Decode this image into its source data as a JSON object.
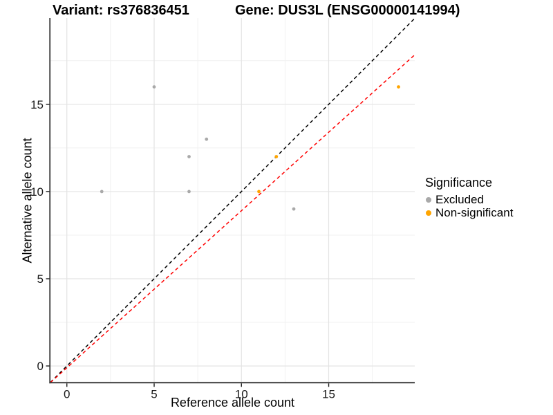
{
  "titles": {
    "variant": "Variant: rs376836451",
    "gene": "Gene: DUS3L (ENSG00000141994)"
  },
  "axes": {
    "x_label": "Reference allele count",
    "y_label": "Alternative allele count"
  },
  "legend": {
    "title": "Significance",
    "items": [
      {
        "label": "Excluded",
        "color": "#A9A9A9"
      },
      {
        "label": "Non-significant",
        "color": "#FFA500"
      }
    ]
  },
  "chart_data": {
    "type": "scatter",
    "title_left": "Variant: rs376836451",
    "title_right": "Gene: DUS3L (ENSG00000141994)",
    "xlabel": "Reference allele count",
    "ylabel": "Alternative allele count",
    "xlim": [
      -0.94,
      19.93
    ],
    "ylim": [
      -0.96,
      19.95
    ],
    "x_breaks": [
      0,
      5,
      10,
      15
    ],
    "y_breaks": [
      0,
      5,
      10,
      15
    ],
    "x_minor_breaks": [
      2.5,
      7.5,
      12.5,
      17.5
    ],
    "y_minor_breaks": [
      2.5,
      7.5,
      12.5,
      17.5
    ],
    "grid": true,
    "legend_position": "right",
    "series": [
      {
        "name": "Excluded",
        "color": "#A9A9A9",
        "points": [
          [
            2,
            10
          ],
          [
            5,
            16
          ],
          [
            7,
            10
          ],
          [
            7,
            12
          ],
          [
            8,
            13
          ],
          [
            13,
            9
          ]
        ]
      },
      {
        "name": "Non-significant",
        "color": "#FFA500",
        "points": [
          [
            11,
            10
          ],
          [
            12,
            12
          ],
          [
            19,
            16
          ]
        ]
      }
    ],
    "lines": [
      {
        "name": "identity",
        "slope": 1,
        "intercept": 0,
        "color": "#000000",
        "style": "dashed"
      },
      {
        "name": "fit",
        "slope": 0.9,
        "intercept": -0.1,
        "color": "#FF0000",
        "style": "dashed"
      }
    ],
    "colors": {
      "grid_major": "#E3E3E3",
      "grid_minor": "#F1F1F1",
      "axis_line": "#3A3A3A",
      "tick_text": "#1A1A1A"
    }
  }
}
